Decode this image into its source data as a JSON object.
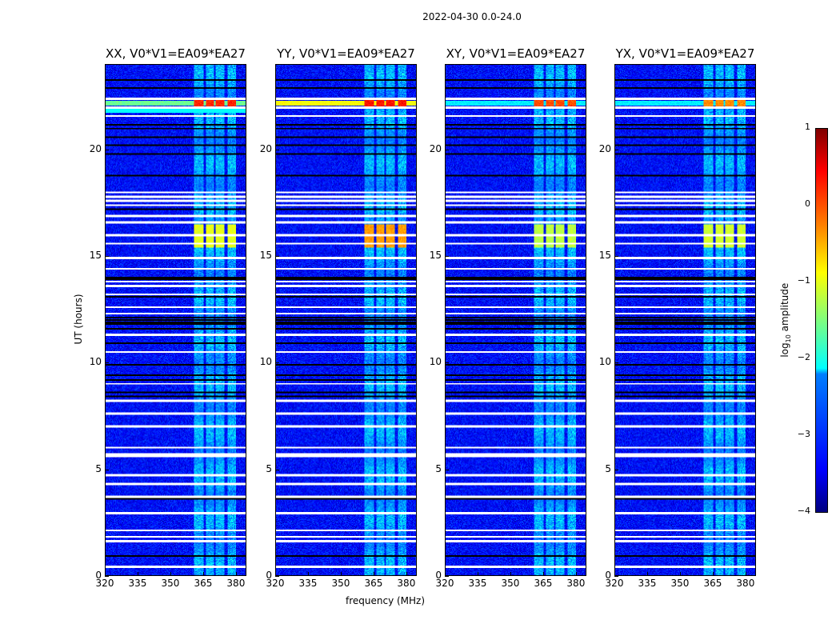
{
  "chart_data": {
    "type": "heatmap",
    "title": "2022-04-30 0.0-24.0",
    "xlabel": "frequency (MHz)",
    "ylabel": "UT (hours)",
    "xlim": [
      320,
      384.8
    ],
    "ylim": [
      0,
      24
    ],
    "xticks": [
      "320",
      "335",
      "350",
      "365",
      "380"
    ],
    "yticks": [
      "0",
      "5",
      "10",
      "15",
      "20"
    ],
    "panels": [
      {
        "title": "XX, V0*V1=EA09*EA27",
        "event_22h": 0.2,
        "event_16h": -1.0,
        "band_22h": -1.6
      },
      {
        "title": "YY, V0*V1=EA09*EA27",
        "event_22h": 0.3,
        "event_16h": -0.4,
        "band_22h": -0.9
      },
      {
        "title": "XY, V0*V1=EA09*EA27",
        "event_22h": 0.0,
        "event_16h": -1.2,
        "band_22h": -2.2
      },
      {
        "title": "YX, V0*V1=EA09*EA27",
        "event_22h": -0.3,
        "event_16h": -1.1,
        "band_22h": -2.2
      }
    ],
    "rfi_bands_mhz": [
      [
        361,
        365.5
      ],
      [
        366.5,
        370
      ],
      [
        371,
        375
      ],
      [
        376.5,
        380.5
      ]
    ],
    "flagged_ut_white": [
      0.4,
      1.6,
      1.8,
      2.1,
      2.9,
      3.7,
      4.3,
      4.7,
      5.6,
      5.7,
      6.0,
      7.0,
      7.6,
      8.2,
      9.0,
      10.5,
      11.3,
      12.3,
      12.6,
      13.2,
      13.6,
      13.8,
      14.4,
      14.9,
      15.6,
      16.0,
      16.6,
      16.9,
      17.4,
      17.6,
      17.8,
      18.0,
      21.6,
      22.0,
      22.4
    ],
    "flagged_ut_black": [
      0.9,
      3.6,
      8.4,
      8.6,
      9.2,
      9.4,
      9.9,
      10.9,
      11.6,
      11.8,
      11.9,
      12.0,
      12.1,
      13.1,
      13.9,
      14.0,
      17.2,
      18.8,
      19.8,
      20.2,
      20.6,
      21.0,
      21.2,
      22.9,
      23.3
    ],
    "colorbar": {
      "label": "log10 amplitude",
      "label_base": "log",
      "label_sub": "10",
      "label_rest": " amplitude",
      "range": [
        -4,
        1
      ],
      "ticks": [
        "1",
        "0",
        "−1",
        "−2",
        "−3",
        "−4"
      ]
    }
  }
}
